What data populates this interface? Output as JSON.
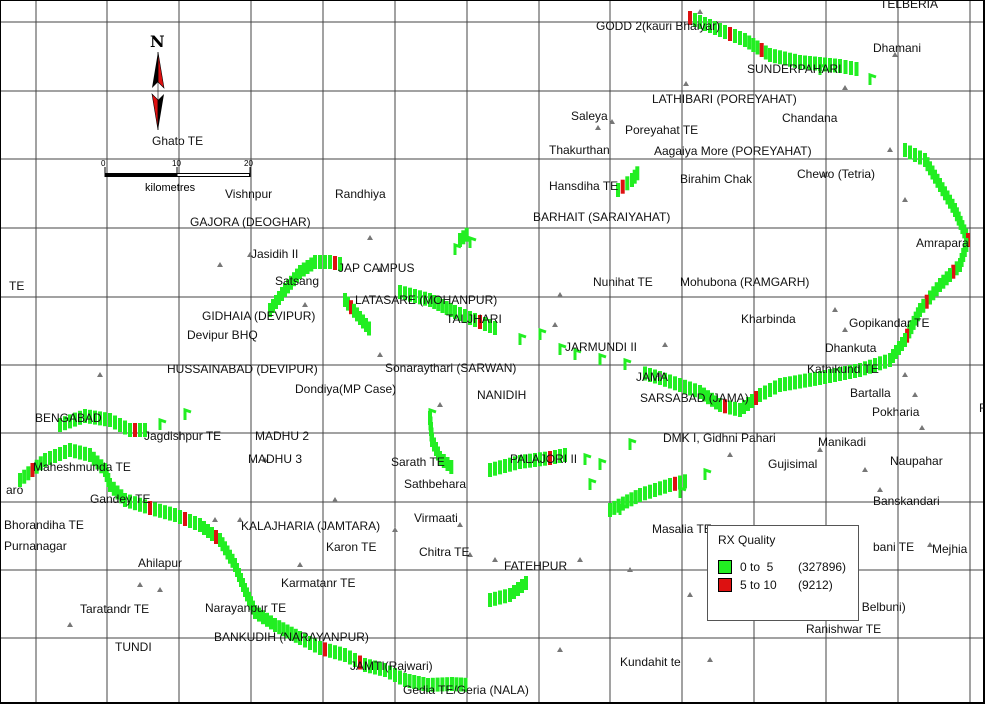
{
  "colors": {
    "quality_good": "#22ee22",
    "quality_bad": "#dd1111",
    "grid": "#444444",
    "site": "#777777",
    "label": "#111111"
  },
  "compass": {
    "letter": "N",
    "icon": "north-arrow-icon"
  },
  "scale_bar": {
    "ticks": [
      "0",
      "10",
      "20"
    ],
    "unit": "kilometres"
  },
  "legend": {
    "title": "RX Quality",
    "items": [
      {
        "range": "0 to  5",
        "count": "(327896)",
        "color": "#22ee22"
      },
      {
        "range": "5 to 10",
        "count": "(9212)",
        "color": "#dd1111"
      }
    ]
  },
  "labels": [
    "GODD 2(kauri Bhaiyar)",
    "TELBERIA",
    "Dhamani",
    "SUNDERPAHARI",
    "LATHIBARI (POREYAHAT)",
    "Chandana",
    "Saleya",
    "Poreyahat TE",
    "Thakurthan",
    "Aagaiya More (POREYAHAT)",
    "Ghato TE",
    "Hansdiha TE",
    "Birahim Chak",
    "Chewo (Tetria)",
    "Vishnpur",
    "Randhiya",
    "BARHAIT (SARAIYAHAT)",
    "GAJORA (DEOGHAR)",
    "Amrapara",
    "Jasidih II",
    "JAP CAMPUS",
    "Satsang",
    "TE",
    "Nunihat TE",
    "Mohubona (RAMGARH)",
    "LATASARE (MOHANPUR)",
    "GIDHAIA (DEVIPUR)",
    "TALJHARI",
    "Kharbinda",
    "Gopikandar TE",
    "Devipur BHQ",
    "JARMUNDI II",
    "Dhankuta",
    "HUSSAINABAD (DEVIPUR)",
    "Sonaraythari (SARWAN)",
    "JAMA",
    "Kathikund TE",
    "Dondiya(MP Case)",
    "NANIDIH",
    "SARSABAD (JAMA)",
    "Bartalla",
    "BENGABAD",
    "Pokharia",
    "Jagdishpur TE",
    "MADHU 2",
    "DMK I, Gidhni Pahari",
    "Manikadi",
    "MADHU 3",
    "PALAJORI II",
    "Sarath TE",
    "Gujisimal",
    "Naupahar",
    "Maheshmunda TE",
    "Sathbehara",
    "Gandey TE",
    "Banskandari",
    "Virmaati",
    "Bhorandiha TE",
    "KALAJHARIA (JAMTARA)",
    "Masalia TE",
    "Purnanagar",
    "Karon TE",
    "Chitra TE",
    "bani TE",
    "Mejhia",
    "Ahilapur",
    "FATEHPUR",
    "Karmatanr TE",
    "Taratandr TE",
    "Narayanpur TE",
    "pota Belbuni)",
    "Ranishwar TE",
    "TUNDI",
    "BANKUDIH (NARAYANPUR)",
    "Kundahit te",
    "JAMTI(Rajwari)",
    "Gedia TE/Geria (NALA)",
    "F",
    "aro"
  ]
}
